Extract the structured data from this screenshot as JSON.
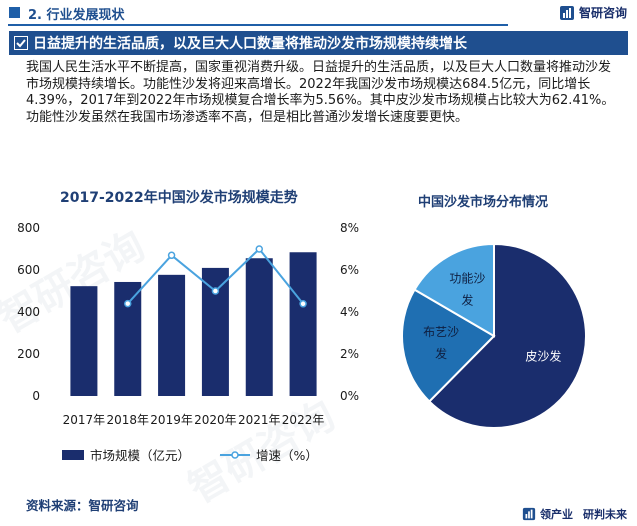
{
  "header": {
    "title": "2. 行业发展现状",
    "brand_name": "智研咨询"
  },
  "banner": {
    "text": "日益提升的生活品质，以及巨大人口数量将推动沙发市场规模持续增长"
  },
  "paragraph": "我国人民生活水平不断提高，国家重视消费升级。日益提升的生活品质，以及巨大人口数量将推动沙发市场规模持续增长。功能性沙发将迎来高增长。2022年我国沙发市场规模达684.5亿元，同比增长4.39%，2017年到2022年市场规模复合增长率为5.56%。其中皮沙发市场规模占比较大为62.41%。功能性沙发虽然在我国市场渗透率不高，但是相比普通沙发增长速度要更快。",
  "source": "资料来源：智研咨询",
  "footer_brand": {
    "part1": "领产业",
    "part2": "研判未来"
  },
  "colors": {
    "brand_blue": "#1f4f8f",
    "bar": "#1a2d6d",
    "line": "#4aa3df",
    "pie_leather": "#1a2d6d",
    "pie_fabric": "#1f6fb2",
    "pie_functional": "#4aa3df"
  },
  "chart_data": [
    {
      "type": "bar",
      "title": "2017-2022年中国沙发市场规模走势",
      "categories": [
        "2017年",
        "2018年",
        "2019年",
        "2020年",
        "2021年",
        "2022年"
      ],
      "series": [
        {
          "name": "市场规模（亿元）",
          "axis": "left",
          "values": [
            523,
            543,
            577,
            610,
            656,
            684.5
          ]
        },
        {
          "name": "增速（%）",
          "type": "line",
          "axis": "right",
          "values": [
            null,
            4.4,
            6.7,
            5.0,
            7.0,
            4.39
          ]
        }
      ],
      "y_left": {
        "lim": [
          0,
          800
        ],
        "ticks": [
          "0",
          "200",
          "400",
          "600",
          "800"
        ]
      },
      "y_right": {
        "lim": [
          0,
          8
        ],
        "ticks": [
          "0%",
          "2%",
          "4%",
          "6%",
          "8%"
        ]
      },
      "grid": false,
      "legend": "bottom"
    },
    {
      "type": "pie",
      "title": "中国沙发市场分布情况",
      "slices": [
        {
          "label": "皮沙发",
          "value": 62.41
        },
        {
          "label": "布艺沙发",
          "value": 21.0
        },
        {
          "label": "功能沙发",
          "value": 16.59
        }
      ]
    }
  ]
}
